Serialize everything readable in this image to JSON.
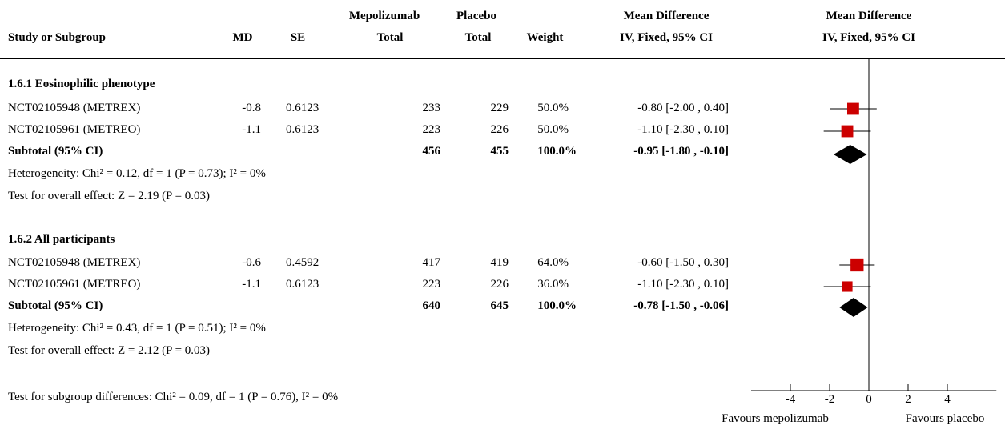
{
  "header": {
    "study_or_subgroup": "Study or Subgroup",
    "md": "MD",
    "se": "SE",
    "mepolizumab": "Mepolizumab",
    "mepolizumab_total": "Total",
    "placebo": "Placebo",
    "placebo_total": "Total",
    "weight": "Weight",
    "md_text_title": "Mean Difference",
    "md_text_sub": "IV, Fixed, 95% CI",
    "md_plot_title": "Mean Difference",
    "md_plot_sub": "IV, Fixed, 95% CI"
  },
  "subgroups": [
    {
      "title": "1.6.1 Eosinophilic phenotype",
      "studies": [
        {
          "name": "NCT02105948 (METREX)",
          "md": "-0.8",
          "se": "0.6123",
          "mepo_total": "233",
          "placebo_total": "229",
          "weight": "50.0%",
          "ci_text": "-0.80 [-2.00 , 0.40]"
        },
        {
          "name": "NCT02105961 (METREO)",
          "md": "-1.1",
          "se": "0.6123",
          "mepo_total": "223",
          "placebo_total": "226",
          "weight": "50.0%",
          "ci_text": "-1.10 [-2.30 , 0.10]"
        }
      ],
      "subtotal": {
        "label": "Subtotal (95% CI)",
        "mepo_total": "456",
        "placebo_total": "455",
        "weight": "100.0%",
        "ci_text": "-0.95 [-1.80 , -0.10]"
      },
      "heterogeneity": "Heterogeneity: Chi² = 0.12, df = 1 (P = 0.73); I² = 0%",
      "overall": "Test for overall effect: Z = 2.19 (P = 0.03)"
    },
    {
      "title": "1.6.2 All participants",
      "studies": [
        {
          "name": "NCT02105948 (METREX)",
          "md": "-0.6",
          "se": "0.4592",
          "mepo_total": "417",
          "placebo_total": "419",
          "weight": "64.0%",
          "ci_text": "-0.60 [-1.50 , 0.30]"
        },
        {
          "name": "NCT02105961 (METREO)",
          "md": "-1.1",
          "se": "0.6123",
          "mepo_total": "223",
          "placebo_total": "226",
          "weight": "36.0%",
          "ci_text": "-1.10 [-2.30 , 0.10]"
        }
      ],
      "subtotal": {
        "label": "Subtotal (95% CI)",
        "mepo_total": "640",
        "placebo_total": "645",
        "weight": "100.0%",
        "ci_text": "-0.78 [-1.50 , -0.06]"
      },
      "heterogeneity": "Heterogeneity: Chi² = 0.43, df = 1 (P = 0.51); I² = 0%",
      "overall": "Test for overall effect: Z = 2.12 (P = 0.03)"
    }
  ],
  "subgroup_differences": "Test for subgroup differences: Chi² = 0.09, df = 1 (P = 0.76), I² = 0%",
  "colors": {
    "study_marker": "#cc0000",
    "diamond": "#000000",
    "line": "#000000"
  },
  "chart_data": {
    "type": "forest",
    "x_ticks": [
      -4,
      -2,
      0,
      2,
      4
    ],
    "x_tick_labels": [
      "-4",
      "-2",
      "0",
      "2",
      "4"
    ],
    "xlim": [
      -6,
      6.5
    ],
    "favours_left": "Favours mepolizumab",
    "favours_right": "Favours placebo",
    "studies": [
      {
        "subgroup": 0,
        "name": "NCT02105948 (METREX)",
        "md": -0.8,
        "lo": -2.0,
        "hi": 0.4,
        "weight": 50.0
      },
      {
        "subgroup": 0,
        "name": "NCT02105961 (METREO)",
        "md": -1.1,
        "lo": -2.3,
        "hi": 0.1,
        "weight": 50.0
      },
      {
        "subgroup": 1,
        "name": "NCT02105948 (METREX)",
        "md": -0.6,
        "lo": -1.5,
        "hi": 0.3,
        "weight": 64.0
      },
      {
        "subgroup": 1,
        "name": "NCT02105961 (METREO)",
        "md": -1.1,
        "lo": -2.3,
        "hi": 0.1,
        "weight": 36.0
      }
    ],
    "subtotals": [
      {
        "subgroup": 0,
        "md": -0.95,
        "lo": -1.8,
        "hi": -0.1
      },
      {
        "subgroup": 1,
        "md": -0.78,
        "lo": -1.5,
        "hi": -0.06
      }
    ]
  }
}
